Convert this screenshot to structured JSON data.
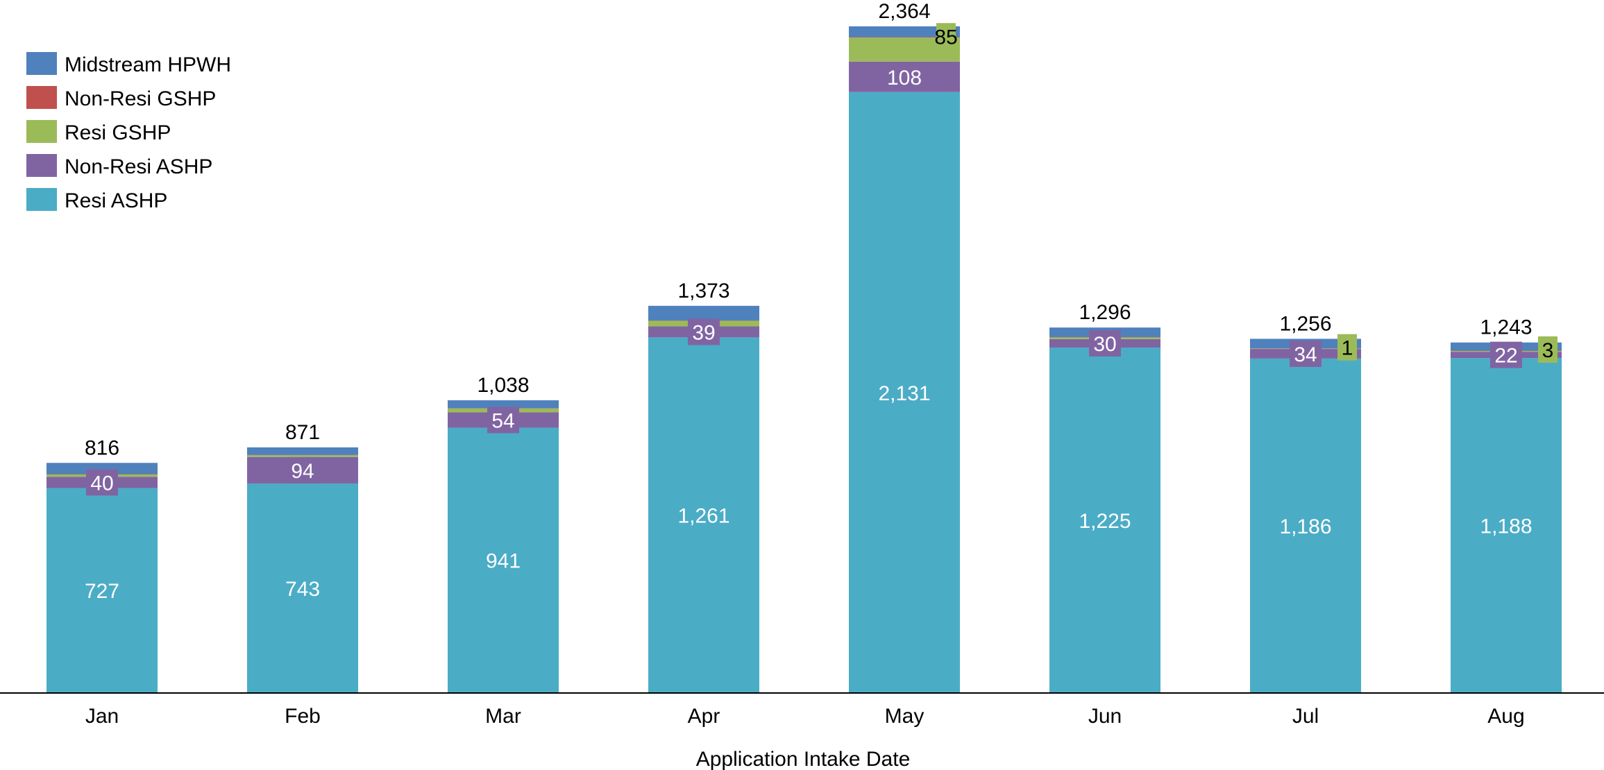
{
  "chart_data": {
    "type": "bar",
    "stacked": true,
    "xlabel": "Application Intake Date",
    "ylabel": "",
    "title": "",
    "ylim": [
      0,
      2500
    ],
    "grid": false,
    "legend_position": "top-left",
    "categories": [
      "Jan",
      "Feb",
      "Mar",
      "Apr",
      "May",
      "Jun",
      "Jul",
      "Aug"
    ],
    "totals": [
      "816",
      "871",
      "1,038",
      "1,373",
      "2,364",
      "1,296",
      "1,256",
      "1,243"
    ],
    "total_values": [
      816,
      871,
      1038,
      1373,
      2364,
      1296,
      1256,
      1243
    ],
    "series": [
      {
        "name": "Resi ASHP",
        "color": "#4BACC6",
        "values": [
          727,
          743,
          941,
          1261,
          2131,
          1225,
          1186,
          1188
        ],
        "labels": [
          "727",
          "743",
          "941",
          "1,261",
          "2,131",
          "1,225",
          "1,186",
          "1,188"
        ]
      },
      {
        "name": "Non-Resi ASHP",
        "color": "#8064A2",
        "values": [
          40,
          94,
          54,
          39,
          108,
          30,
          34,
          22
        ],
        "labels": [
          "40",
          "94",
          "54",
          "39",
          "108",
          "30",
          "34",
          "22"
        ]
      },
      {
        "name": "Resi GSHP",
        "color": "#9BBB59",
        "values": [
          8,
          6,
          14,
          20,
          85,
          6,
          1,
          3
        ],
        "labels": [
          "",
          "",
          "",
          "",
          "85",
          "",
          "1",
          "3"
        ]
      },
      {
        "name": "Non-Resi GSHP",
        "color": "#C0504D",
        "values": [
          1,
          1,
          1,
          1,
          2,
          1,
          1,
          1
        ],
        "labels": [
          "",
          "",
          "",
          "",
          "",
          "",
          "",
          ""
        ]
      },
      {
        "name": "Midstream HPWH",
        "color": "#4F81BD",
        "values": [
          40,
          27,
          28,
          52,
          38,
          34,
          34,
          29
        ],
        "labels": [
          "",
          "",
          "",
          "",
          "",
          "",
          "",
          ""
        ]
      }
    ],
    "legend": [
      "Midstream HPWH",
      "Non-Resi GSHP",
      "Resi GSHP",
      "Non-Resi ASHP",
      "Resi ASHP"
    ]
  }
}
